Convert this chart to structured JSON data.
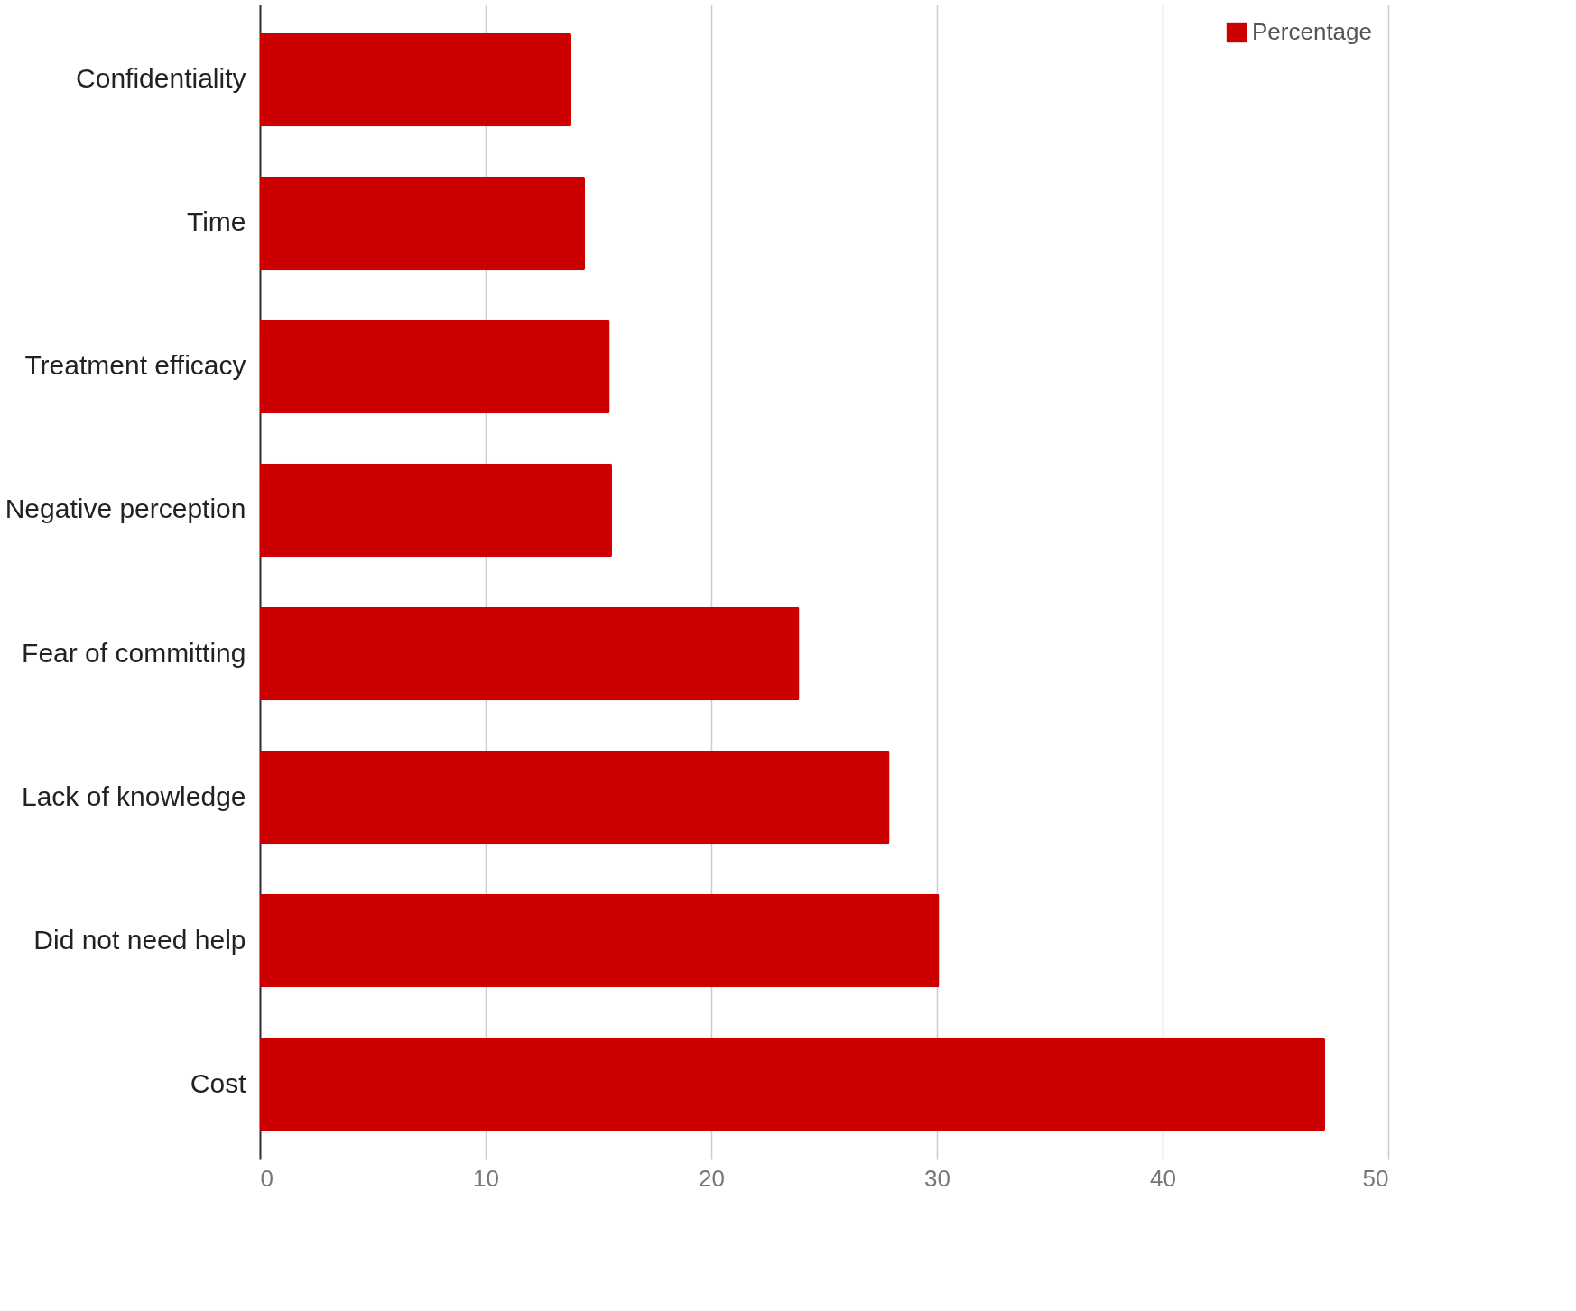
{
  "chart_data": {
    "type": "bar",
    "orientation": "horizontal",
    "categories": [
      "Confidentiality",
      "Time",
      "Treatment efficacy",
      "Negative perception",
      "Fear of committing",
      "Lack of knowledge",
      "Did not need help",
      "Cost"
    ],
    "series": [
      {
        "name": "Percentage",
        "color": "#cc0000",
        "values": [
          13.8,
          14.4,
          15.5,
          15.6,
          23.9,
          27.9,
          30.1,
          47.2
        ]
      }
    ],
    "xlim": [
      0,
      50
    ],
    "xticks": [
      0,
      10,
      20,
      30,
      40,
      50
    ],
    "grid": "x",
    "legend": "top right"
  }
}
